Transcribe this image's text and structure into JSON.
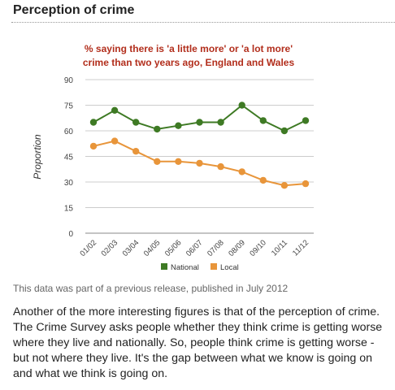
{
  "section_title": "Perception of crime",
  "caption": "This data was part of a previous release, published in July 2012",
  "paragraph": "Another of the more interesting figures is that of the perception of crime. The Crime Survey asks people whether they think crime is getting worse where they live and nationally. So, people think crime is getting worse - but not where they live. It's the gap between what we know is going on and what we think is going on.",
  "colors": {
    "title": "#b22e1c",
    "national": "#3e7a24",
    "local": "#e8953a",
    "grid": "#cccccc"
  },
  "chart_data": {
    "type": "line",
    "title_lines": [
      "% saying there is 'a little more' or 'a lot more'",
      "crime than two years ago, England and Wales"
    ],
    "ylabel": "Proportion",
    "xlabel": "",
    "ylim": [
      0,
      90
    ],
    "yticks": [
      0,
      15,
      30,
      45,
      60,
      75,
      90
    ],
    "categories": [
      "01/02",
      "02/03",
      "03/04",
      "04/05",
      "05/06",
      "06/07",
      "07/08",
      "08/09",
      "09/10",
      "10/11",
      "11/12"
    ],
    "series": [
      {
        "name": "National",
        "values": [
          65,
          72,
          65,
          61,
          63,
          65,
          65,
          75,
          66,
          60,
          66
        ]
      },
      {
        "name": "Local",
        "values": [
          51,
          54,
          48,
          42,
          42,
          41,
          39,
          36,
          31,
          28,
          29
        ]
      }
    ],
    "grid": true,
    "legend_position": "bottom"
  }
}
